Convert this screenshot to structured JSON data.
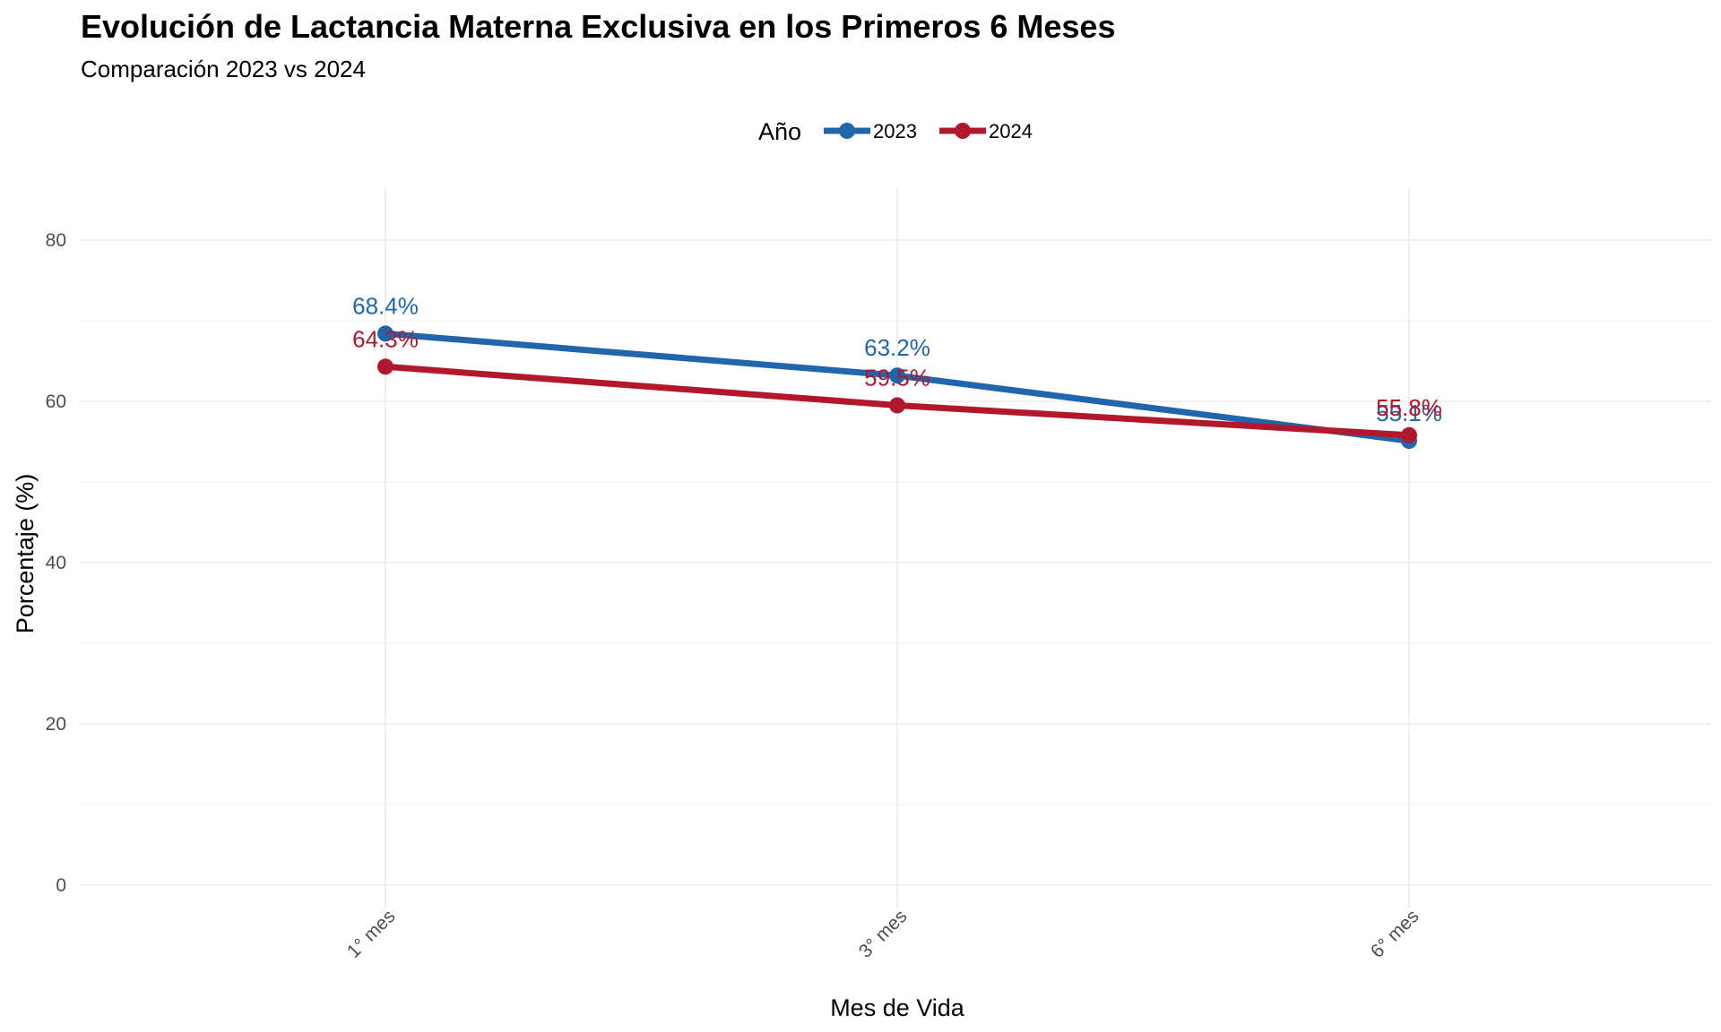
{
  "chart_data": {
    "type": "line",
    "title": "Evolución de Lactancia Materna Exclusiva en los Primeros 6 Meses",
    "subtitle": "Comparación 2023 vs 2024",
    "xlabel": "Mes de Vida",
    "ylabel": "Porcentaje (%)",
    "categories": [
      "1° mes",
      "3° mes",
      "6° mes"
    ],
    "ylim": [
      0,
      80
    ],
    "yticks": [
      0,
      20,
      40,
      60,
      80
    ],
    "legend": {
      "title": "Año",
      "position": "top"
    },
    "series": [
      {
        "name": "2023",
        "color": "#2166ac",
        "values": [
          68.4,
          63.2,
          55.1
        ],
        "labels": [
          "68.4%",
          "63.2%",
          "55.1%"
        ]
      },
      {
        "name": "2024",
        "color": "#b2182b",
        "values": [
          64.3,
          59.5,
          55.8
        ],
        "labels": [
          "64.3%",
          "59.5%",
          "55.8%"
        ]
      }
    ]
  }
}
